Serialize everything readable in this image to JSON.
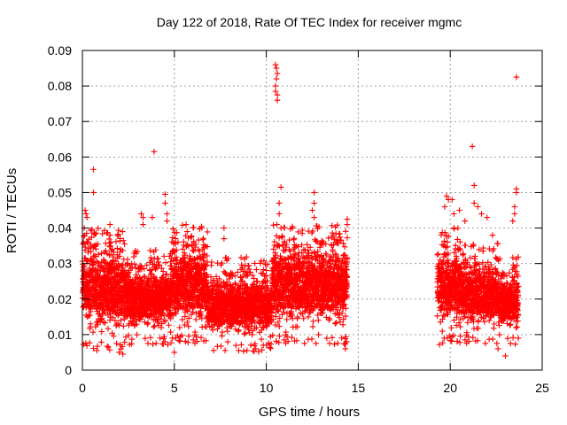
{
  "chart_data": {
    "type": "scatter",
    "title": "Day 122 of 2018, Rate Of TEC Index for receiver mgmc",
    "xlabel": "GPS time / hours",
    "ylabel": "ROTI / TECUs",
    "xlim": [
      0,
      25
    ],
    "ylim": [
      0,
      0.09
    ],
    "grid": true,
    "marker": "+",
    "color": "#ff0000",
    "xticks": [
      {
        "value": 0,
        "label": "0"
      },
      {
        "value": 5,
        "label": "5"
      },
      {
        "value": 10,
        "label": "10"
      },
      {
        "value": 15,
        "label": "15"
      },
      {
        "value": 20,
        "label": "20"
      },
      {
        "value": 25,
        "label": "25"
      }
    ],
    "yticks": [
      {
        "value": 0,
        "label": "0"
      },
      {
        "value": 0.01,
        "label": "0.01"
      },
      {
        "value": 0.02,
        "label": "0.02"
      },
      {
        "value": 0.03,
        "label": "0.03"
      },
      {
        "value": 0.04,
        "label": "0.04"
      },
      {
        "value": 0.05,
        "label": "0.05"
      },
      {
        "value": 0.06,
        "label": "0.06"
      },
      {
        "value": 0.07,
        "label": "0.07"
      },
      {
        "value": 0.08,
        "label": "0.08"
      },
      {
        "value": 0.09,
        "label": "0.09"
      }
    ],
    "segments": [
      {
        "start": 0.0,
        "end": 2.3,
        "low": 0.008,
        "high": 0.034
      },
      {
        "start": 2.3,
        "end": 4.8,
        "low": 0.01,
        "high": 0.028
      },
      {
        "start": 4.8,
        "end": 6.8,
        "low": 0.01,
        "high": 0.035
      },
      {
        "start": 6.8,
        "end": 10.3,
        "low": 0.008,
        "high": 0.026
      },
      {
        "start": 10.3,
        "end": 14.4,
        "low": 0.01,
        "high": 0.035
      },
      {
        "start": 19.3,
        "end": 20.6,
        "low": 0.01,
        "high": 0.034
      },
      {
        "start": 20.6,
        "end": 22.6,
        "low": 0.01,
        "high": 0.03
      },
      {
        "start": 22.6,
        "end": 23.7,
        "low": 0.01,
        "high": 0.026
      }
    ],
    "notable_points": [
      {
        "x": 0.1,
        "y": 0.04
      },
      {
        "x": 0.15,
        "y": 0.045
      },
      {
        "x": 0.2,
        "y": 0.044
      },
      {
        "x": 0.25,
        "y": 0.043
      },
      {
        "x": 0.6,
        "y": 0.0565
      },
      {
        "x": 0.6,
        "y": 0.05
      },
      {
        "x": 1.5,
        "y": 0.041
      },
      {
        "x": 1.5,
        "y": 0.038
      },
      {
        "x": 2.1,
        "y": 0.006
      },
      {
        "x": 2.0,
        "y": 0.005
      },
      {
        "x": 2.2,
        "y": 0.0045
      },
      {
        "x": 3.2,
        "y": 0.044
      },
      {
        "x": 3.3,
        "y": 0.043
      },
      {
        "x": 3.3,
        "y": 0.041
      },
      {
        "x": 3.9,
        "y": 0.0615
      },
      {
        "x": 3.8,
        "y": 0.043
      },
      {
        "x": 4.5,
        "y": 0.0495
      },
      {
        "x": 4.5,
        "y": 0.047
      },
      {
        "x": 4.6,
        "y": 0.044
      },
      {
        "x": 4.6,
        "y": 0.042
      },
      {
        "x": 5.0,
        "y": 0.005
      },
      {
        "x": 5.2,
        "y": 0.036
      },
      {
        "x": 5.7,
        "y": 0.039
      },
      {
        "x": 7.7,
        "y": 0.04
      },
      {
        "x": 7.7,
        "y": 0.037
      },
      {
        "x": 10.5,
        "y": 0.086
      },
      {
        "x": 10.55,
        "y": 0.085
      },
      {
        "x": 10.6,
        "y": 0.0835
      },
      {
        "x": 10.55,
        "y": 0.082
      },
      {
        "x": 10.5,
        "y": 0.08
      },
      {
        "x": 10.5,
        "y": 0.0785
      },
      {
        "x": 10.6,
        "y": 0.0775
      },
      {
        "x": 10.6,
        "y": 0.076
      },
      {
        "x": 10.8,
        "y": 0.0515
      },
      {
        "x": 10.7,
        "y": 0.047
      },
      {
        "x": 10.7,
        "y": 0.044
      },
      {
        "x": 10.8,
        "y": 0.04
      },
      {
        "x": 12.6,
        "y": 0.05
      },
      {
        "x": 12.6,
        "y": 0.047
      },
      {
        "x": 12.5,
        "y": 0.045
      },
      {
        "x": 12.6,
        "y": 0.043
      },
      {
        "x": 14.4,
        "y": 0.0425
      },
      {
        "x": 14.4,
        "y": 0.041
      },
      {
        "x": 14.3,
        "y": 0.006
      },
      {
        "x": 14.3,
        "y": 0.0075
      },
      {
        "x": 19.8,
        "y": 0.049
      },
      {
        "x": 19.9,
        "y": 0.048
      },
      {
        "x": 20.1,
        "y": 0.048
      },
      {
        "x": 20.2,
        "y": 0.044
      },
      {
        "x": 19.7,
        "y": 0.046
      },
      {
        "x": 20.2,
        "y": 0.04
      },
      {
        "x": 20.5,
        "y": 0.045
      },
      {
        "x": 20.8,
        "y": 0.042
      },
      {
        "x": 21.2,
        "y": 0.063
      },
      {
        "x": 21.3,
        "y": 0.052
      },
      {
        "x": 21.3,
        "y": 0.047
      },
      {
        "x": 21.5,
        "y": 0.046
      },
      {
        "x": 21.7,
        "y": 0.044
      },
      {
        "x": 22.0,
        "y": 0.043
      },
      {
        "x": 22.3,
        "y": 0.038
      },
      {
        "x": 22.6,
        "y": 0.006
      },
      {
        "x": 23.0,
        "y": 0.004
      },
      {
        "x": 23.4,
        "y": 0.042
      },
      {
        "x": 23.5,
        "y": 0.046
      },
      {
        "x": 23.5,
        "y": 0.044
      },
      {
        "x": 23.6,
        "y": 0.051
      },
      {
        "x": 23.6,
        "y": 0.05
      },
      {
        "x": 23.6,
        "y": 0.0825
      },
      {
        "x": 23.5,
        "y": 0.029
      },
      {
        "x": 23.7,
        "y": 0.009
      }
    ]
  }
}
